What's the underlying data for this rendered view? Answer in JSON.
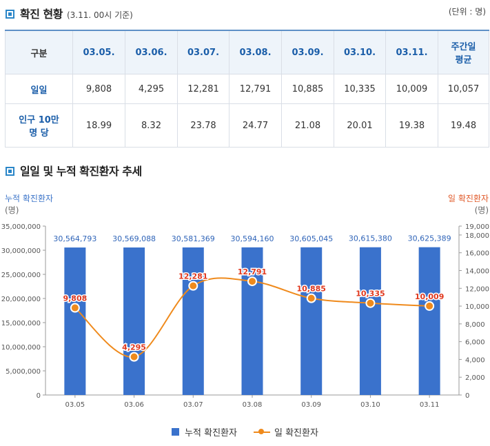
{
  "section1": {
    "title": "확진 현황",
    "subtitle": "(3.11. 00시 기준)",
    "unit": "(단위 : 명)"
  },
  "table": {
    "header": [
      "구분",
      "03.05.",
      "03.06.",
      "03.07.",
      "03.08.",
      "03.09.",
      "03.10.",
      "03.11.",
      "주간일\n평균"
    ],
    "rows": [
      {
        "label": "일일",
        "cells": [
          "9,808",
          "4,295",
          "12,281",
          "12,791",
          "10,885",
          "10,335",
          "10,009",
          "10,057"
        ]
      },
      {
        "label": "인구 10만\n명 당",
        "cells": [
          "18.99",
          "8.32",
          "23.78",
          "24.77",
          "21.08",
          "20.01",
          "19.38",
          "19.48"
        ]
      }
    ]
  },
  "section2": {
    "title": "일일 및 누적 확진환자 추세"
  },
  "chart_data": {
    "type": "bar",
    "categories": [
      "03.05",
      "03.06",
      "03.07",
      "03.08",
      "03.09",
      "03.10",
      "03.11"
    ],
    "series": [
      {
        "name": "누적 확진환자",
        "type": "bar",
        "axis": "left",
        "color": "#3a72cc",
        "values": [
          30564793,
          30569088,
          30581369,
          30594160,
          30605045,
          30615380,
          30625389
        ],
        "labels": [
          "30,564,793",
          "30,569,088",
          "30,581,369",
          "30,594,160",
          "30,605,045",
          "30,615,380",
          "30,625,389"
        ]
      },
      {
        "name": "일 확진환자",
        "type": "line",
        "axis": "right",
        "color": "#ef8a1c",
        "values": [
          9808,
          4295,
          12281,
          12791,
          10885,
          10335,
          10009
        ],
        "labels": [
          "9,808",
          "4,295",
          "12,281",
          "12,791",
          "10,885",
          "10,335",
          "10,009"
        ]
      }
    ],
    "y_left": {
      "title": "누적 확진환자",
      "unit": "(명)",
      "min": 0,
      "max": 35000000,
      "ticks": [
        "0",
        "5,000,000",
        "10,000,000",
        "15,000,000",
        "20,000,000",
        "25,000,000",
        "30,000,000",
        "35,000,000"
      ]
    },
    "y_right": {
      "title": "일 확진환자",
      "unit": "(명)",
      "min": 0,
      "max": 19000,
      "ticks": [
        0,
        2000,
        4000,
        6000,
        8000,
        10000,
        12000,
        14000,
        16000,
        18000,
        19000
      ],
      "tick_labels": [
        "0",
        "2,000",
        "4,000",
        "6,000",
        "8,000",
        "10,000",
        "12,000",
        "14,000",
        "16,000",
        "18,000",
        "19,000"
      ]
    },
    "legend": "bottom-center",
    "grid": false
  }
}
